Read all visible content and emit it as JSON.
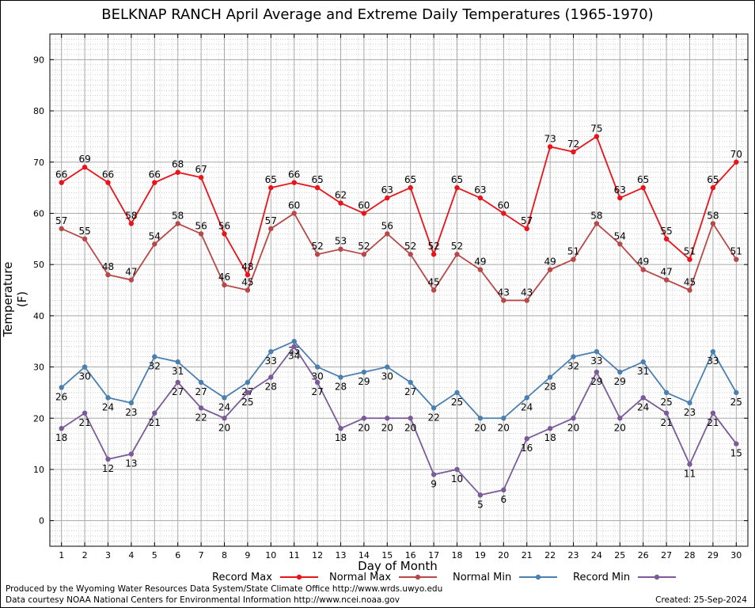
{
  "chart_data": {
    "type": "line",
    "title": "BELKNAP RANCH April Average and Extreme Daily Temperatures (1965-1970)",
    "xlabel": "Day of Month",
    "ylabel": "Temperature (F)",
    "x": [
      1,
      2,
      3,
      4,
      5,
      6,
      7,
      8,
      9,
      10,
      11,
      12,
      13,
      14,
      15,
      16,
      17,
      18,
      19,
      20,
      21,
      22,
      23,
      24,
      25,
      26,
      27,
      28,
      29,
      30
    ],
    "ylim": [
      -5,
      95
    ],
    "yticks": [
      0,
      10,
      20,
      30,
      40,
      50,
      60,
      70,
      80,
      90
    ],
    "grid": true,
    "legend_position": "bottom",
    "series": [
      {
        "name": "Record Max",
        "color": "#e8141a",
        "values": [
          66,
          69,
          66,
          58,
          66,
          68,
          67,
          56,
          48,
          65,
          66,
          65,
          62,
          60,
          63,
          65,
          52,
          65,
          63,
          60,
          57,
          73,
          72,
          75,
          63,
          65,
          55,
          51,
          65,
          70
        ]
      },
      {
        "name": "Normal Max",
        "color": "#b84848",
        "values": [
          57,
          55,
          48,
          47,
          54,
          58,
          56,
          46,
          45,
          57,
          60,
          52,
          53,
          52,
          56,
          52,
          45,
          52,
          49,
          43,
          43,
          49,
          51,
          58,
          54,
          49,
          47,
          45,
          58,
          51
        ]
      },
      {
        "name": "Normal Min",
        "color": "#4a7fb0",
        "values": [
          26,
          30,
          24,
          23,
          32,
          31,
          27,
          24,
          27,
          33,
          35,
          30,
          28,
          29,
          30,
          27,
          22,
          25,
          20,
          20,
          24,
          28,
          32,
          33,
          29,
          31,
          25,
          23,
          33,
          25
        ]
      },
      {
        "name": "Record Min",
        "color": "#7b5a99",
        "values": [
          18,
          21,
          12,
          13,
          21,
          27,
          22,
          20,
          25,
          28,
          34,
          27,
          18,
          20,
          20,
          20,
          9,
          10,
          5,
          6,
          16,
          18,
          20,
          29,
          20,
          24,
          21,
          11,
          21,
          15
        ]
      }
    ]
  },
  "footer": {
    "produced_by": "Produced by the Wyoming Water Resources Data System/State Climate Office http://www.wrds.uwyo.edu",
    "courtesy": "Data courtesy NOAA National Centers for Environmental Information http://www.ncei.noaa.gov",
    "created": "Created:  25-Sep-2024"
  }
}
